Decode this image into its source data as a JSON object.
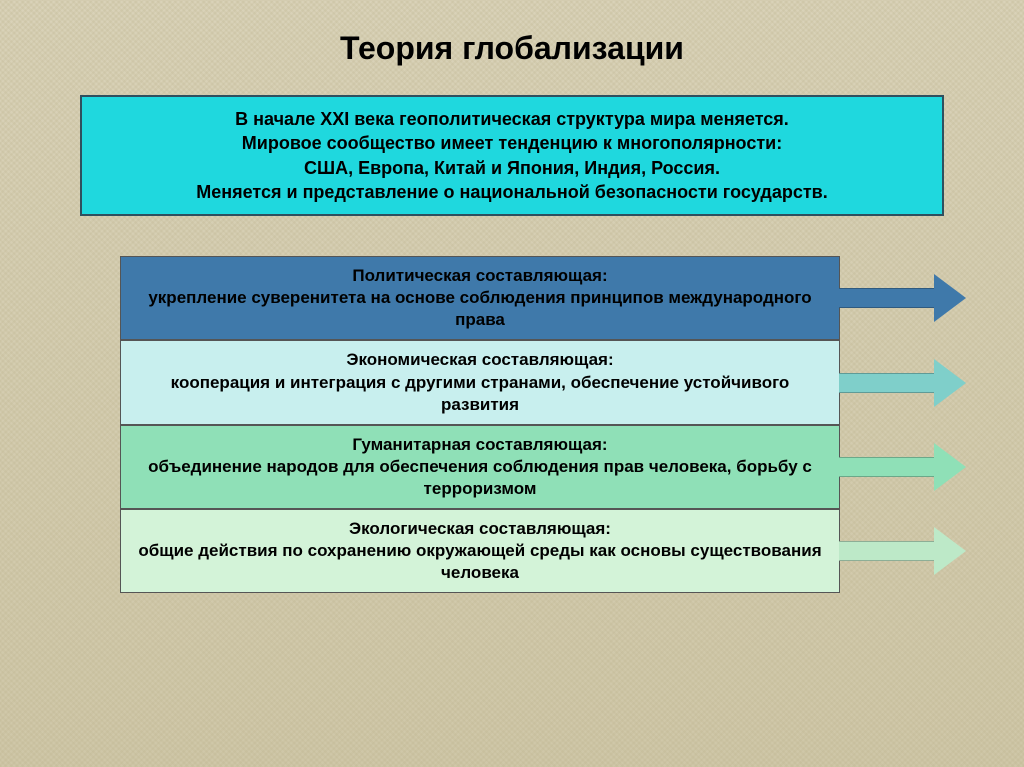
{
  "title": {
    "text": "Теория глобализации",
    "fontsize": 32,
    "color": "#000000"
  },
  "intro": {
    "lines": [
      "В начале XXI века геополитическая структура мира меняется.",
      "Мировое сообщество имеет тенденцию к многополярности:",
      "США, Европа, Китай и Япония, Индия, Россия.",
      "Меняется и представление о национальной безопасности государств."
    ],
    "bg_color": "#1fd8de",
    "border_color": "#2f4f5e",
    "fontsize": 18,
    "text_color": "#000000"
  },
  "rows": [
    {
      "heading": "Политическая составляющая:",
      "body": "укрепление суверенитета на основе соблюдения принципов международного права",
      "bg_color": "#3f79aa",
      "arrow_shaft": "#3f79aa",
      "arrow_head": "#3f79aa",
      "text_color": "#000000"
    },
    {
      "heading": "Экономическая составляющая:",
      "body": "кооперация и интеграция с другими странами, обеспечение устойчивого развития",
      "bg_color": "#c8efee",
      "arrow_shaft": "#7fcfca",
      "arrow_head": "#7fcfca",
      "text_color": "#000000"
    },
    {
      "heading": "Гуманитарная составляющая:",
      "body": "объединение народов для обеспечения соблюдения прав человека, борьбу с терроризмом",
      "bg_color": "#8fe0b7",
      "arrow_shaft": "#8fe0b7",
      "arrow_head": "#8fe0b7",
      "text_color": "#000000"
    },
    {
      "heading": "Экологическая составляющая:",
      "body": "общие действия по сохранению окружающей среды как основы существования человека",
      "bg_color": "#d3f3d8",
      "arrow_shaft": "#bde9c8",
      "arrow_head": "#bde9c8",
      "text_color": "#000000"
    }
  ],
  "layout": {
    "row_fontsize": 17,
    "row_width": 720,
    "arrow_shaft_width": 95,
    "arrow_shaft_height": 20,
    "arrow_head_size": 24
  }
}
